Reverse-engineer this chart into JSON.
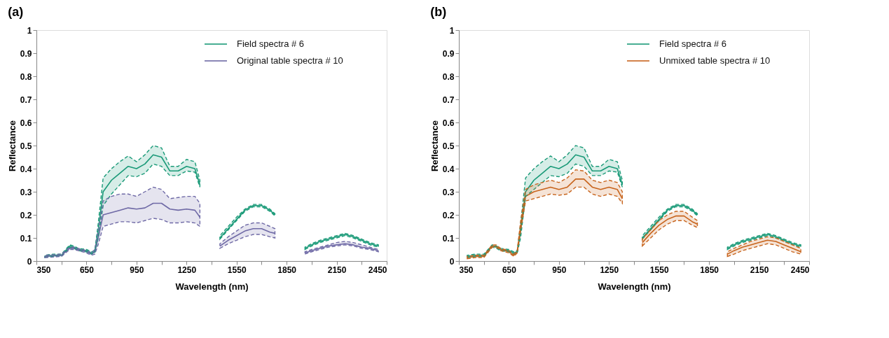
{
  "chart_data": [
    {
      "type": "line",
      "title": "(a)",
      "xlabel": "Wavelength (nm)",
      "ylabel": "Reflectance",
      "legend": "top right",
      "grid": false,
      "line_style": "solid",
      "marker": "none",
      "x": [
        400,
        450,
        500,
        550,
        575,
        600,
        650,
        680,
        700,
        720,
        750,
        800,
        850,
        900,
        950,
        1000,
        1050,
        1100,
        1150,
        1200,
        1250,
        1300,
        1330,
        1400,
        1450,
        1500,
        1550,
        1600,
        1650,
        1700,
        1750,
        1780,
        1900,
        1960,
        2000,
        2050,
        2100,
        2150,
        2200,
        2250,
        2300,
        2350,
        2400
      ],
      "xlim": [
        350,
        2450
      ],
      "xticks": [
        350,
        {
          "value": 500,
          "label": null
        },
        650,
        {
          "value": 800,
          "label": null
        },
        950,
        {
          "value": 1100,
          "label": null
        },
        1250,
        {
          "value": 1400,
          "label": null
        },
        1550,
        {
          "value": 1700,
          "label": null
        },
        1850,
        {
          "value": 2000,
          "label": null
        },
        2150,
        {
          "value": 2300,
          "label": null
        },
        2450
      ],
      "ylim": [
        0,
        1
      ],
      "yticks": [
        0,
        0.1,
        0.2,
        0.3,
        0.4,
        0.5,
        0.6,
        0.7,
        0.8,
        0.9,
        1
      ],
      "series": [
        {
          "name": "Field spectra # 6",
          "color": "#1a9a78",
          "values": [
            0.02,
            0.025,
            0.025,
            0.065,
            0.06,
            0.05,
            0.045,
            0.035,
            0.04,
            0.13,
            0.3,
            0.35,
            0.38,
            0.41,
            0.4,
            0.42,
            0.46,
            0.45,
            0.39,
            0.39,
            0.41,
            0.4,
            0.33,
            null,
            0.1,
            0.14,
            0.18,
            0.22,
            0.24,
            0.24,
            0.22,
            0.2,
            null,
            0.055,
            0.07,
            0.085,
            0.095,
            0.105,
            0.115,
            0.105,
            0.09,
            0.075,
            0.065
          ],
          "lower": [
            0.015,
            0.02,
            0.02,
            0.06,
            0.055,
            0.045,
            0.04,
            0.03,
            0.035,
            0.1,
            0.24,
            0.29,
            0.33,
            0.37,
            0.365,
            0.38,
            0.42,
            0.41,
            0.37,
            0.37,
            0.39,
            0.385,
            0.32,
            null,
            0.095,
            0.135,
            0.175,
            0.215,
            0.235,
            0.235,
            0.215,
            0.195,
            null,
            0.05,
            0.065,
            0.08,
            0.09,
            0.1,
            0.11,
            0.1,
            0.085,
            0.07,
            0.06
          ],
          "upper": [
            0.025,
            0.03,
            0.03,
            0.07,
            0.065,
            0.055,
            0.05,
            0.04,
            0.045,
            0.16,
            0.36,
            0.4,
            0.43,
            0.455,
            0.43,
            0.46,
            0.5,
            0.49,
            0.41,
            0.41,
            0.44,
            0.43,
            0.35,
            null,
            0.11,
            0.15,
            0.19,
            0.225,
            0.245,
            0.245,
            0.225,
            0.205,
            null,
            0.06,
            0.075,
            0.09,
            0.1,
            0.11,
            0.12,
            0.11,
            0.095,
            0.08,
            0.07
          ]
        },
        {
          "name": "Original table spectra # 10",
          "color": "#6f6aa6",
          "values": [
            0.02,
            0.022,
            0.025,
            0.055,
            0.055,
            0.05,
            0.04,
            0.03,
            0.04,
            0.1,
            0.2,
            0.21,
            0.22,
            0.23,
            0.225,
            0.23,
            0.25,
            0.25,
            0.225,
            0.22,
            0.225,
            0.22,
            0.19,
            null,
            0.065,
            0.09,
            0.11,
            0.13,
            0.14,
            0.14,
            0.125,
            0.12,
            null,
            0.035,
            0.045,
            0.055,
            0.065,
            0.07,
            0.075,
            0.07,
            0.06,
            0.055,
            0.045
          ],
          "lower": [
            0.015,
            0.017,
            0.02,
            0.05,
            0.05,
            0.045,
            0.035,
            0.025,
            0.03,
            0.07,
            0.15,
            0.16,
            0.17,
            0.17,
            0.165,
            0.175,
            0.185,
            0.18,
            0.165,
            0.165,
            0.17,
            0.165,
            0.15,
            null,
            0.055,
            0.075,
            0.09,
            0.105,
            0.115,
            0.115,
            0.105,
            0.1,
            null,
            0.03,
            0.04,
            0.05,
            0.06,
            0.065,
            0.07,
            0.065,
            0.055,
            0.05,
            0.04
          ],
          "upper": [
            0.025,
            0.027,
            0.03,
            0.06,
            0.06,
            0.055,
            0.045,
            0.035,
            0.05,
            0.13,
            0.26,
            0.28,
            0.29,
            0.29,
            0.28,
            0.3,
            0.32,
            0.31,
            0.27,
            0.275,
            0.28,
            0.28,
            0.25,
            null,
            0.075,
            0.105,
            0.13,
            0.155,
            0.165,
            0.165,
            0.15,
            0.14,
            null,
            0.04,
            0.05,
            0.06,
            0.07,
            0.08,
            0.085,
            0.08,
            0.07,
            0.06,
            0.05
          ]
        }
      ]
    },
    {
      "type": "line",
      "title": "(b)",
      "xlabel": "Wavelength (nm)",
      "ylabel": "Reflectance",
      "legend": "top right",
      "grid": false,
      "line_style": "solid",
      "marker": "none",
      "x": [
        400,
        450,
        500,
        550,
        575,
        600,
        650,
        680,
        700,
        720,
        750,
        800,
        850,
        900,
        950,
        1000,
        1050,
        1100,
        1150,
        1200,
        1250,
        1300,
        1330,
        1400,
        1450,
        1500,
        1550,
        1600,
        1650,
        1700,
        1750,
        1780,
        1900,
        1960,
        2000,
        2050,
        2100,
        2150,
        2200,
        2250,
        2300,
        2350,
        2400
      ],
      "xlim": [
        350,
        2450
      ],
      "xticks": [
        350,
        {
          "value": 500,
          "label": null
        },
        650,
        {
          "value": 800,
          "label": null
        },
        950,
        {
          "value": 1100,
          "label": null
        },
        1250,
        {
          "value": 1400,
          "label": null
        },
        1550,
        {
          "value": 1700,
          "label": null
        },
        1850,
        {
          "value": 2000,
          "label": null
        },
        2150,
        {
          "value": 2300,
          "label": null
        },
        2450
      ],
      "ylim": [
        0,
        1
      ],
      "yticks": [
        0,
        0.1,
        0.2,
        0.3,
        0.4,
        0.5,
        0.6,
        0.7,
        0.8,
        0.9,
        1
      ],
      "series": [
        {
          "name": "Field spectra # 6",
          "color": "#1a9a78",
          "values": [
            0.02,
            0.025,
            0.025,
            0.065,
            0.06,
            0.05,
            0.045,
            0.035,
            0.04,
            0.13,
            0.3,
            0.35,
            0.38,
            0.41,
            0.4,
            0.42,
            0.46,
            0.45,
            0.39,
            0.39,
            0.41,
            0.4,
            0.33,
            null,
            0.1,
            0.14,
            0.18,
            0.22,
            0.24,
            0.24,
            0.22,
            0.2,
            null,
            0.055,
            0.07,
            0.085,
            0.095,
            0.105,
            0.115,
            0.105,
            0.09,
            0.075,
            0.065
          ],
          "lower": [
            0.015,
            0.02,
            0.02,
            0.06,
            0.055,
            0.045,
            0.04,
            0.03,
            0.035,
            0.1,
            0.28,
            0.31,
            0.34,
            0.37,
            0.365,
            0.38,
            0.42,
            0.41,
            0.37,
            0.37,
            0.39,
            0.385,
            0.32,
            null,
            0.095,
            0.135,
            0.175,
            0.215,
            0.235,
            0.235,
            0.215,
            0.195,
            null,
            0.05,
            0.065,
            0.08,
            0.09,
            0.1,
            0.11,
            0.1,
            0.085,
            0.07,
            0.06
          ],
          "upper": [
            0.025,
            0.03,
            0.03,
            0.07,
            0.065,
            0.055,
            0.05,
            0.04,
            0.045,
            0.16,
            0.36,
            0.4,
            0.43,
            0.455,
            0.43,
            0.46,
            0.5,
            0.49,
            0.41,
            0.41,
            0.44,
            0.43,
            0.35,
            null,
            0.11,
            0.15,
            0.19,
            0.225,
            0.245,
            0.245,
            0.225,
            0.205,
            null,
            0.06,
            0.075,
            0.09,
            0.1,
            0.11,
            0.12,
            0.11,
            0.095,
            0.08,
            0.07
          ]
        },
        {
          "name": "Unmixed table spectra # 10",
          "color": "#c8651e",
          "values": [
            0.015,
            0.02,
            0.02,
            0.065,
            0.065,
            0.05,
            0.04,
            0.025,
            0.04,
            0.15,
            0.28,
            0.3,
            0.31,
            0.32,
            0.31,
            0.32,
            0.355,
            0.355,
            0.32,
            0.31,
            0.32,
            0.31,
            0.27,
            null,
            0.08,
            0.12,
            0.155,
            0.18,
            0.195,
            0.195,
            0.17,
            0.16,
            null,
            0.03,
            0.045,
            0.06,
            0.07,
            0.08,
            0.09,
            0.085,
            0.07,
            0.055,
            0.04
          ],
          "lower": [
            0.01,
            0.015,
            0.015,
            0.06,
            0.06,
            0.045,
            0.035,
            0.02,
            0.035,
            0.13,
            0.26,
            0.27,
            0.28,
            0.29,
            0.285,
            0.29,
            0.32,
            0.32,
            0.29,
            0.28,
            0.29,
            0.28,
            0.25,
            null,
            0.065,
            0.1,
            0.135,
            0.16,
            0.175,
            0.175,
            0.155,
            0.145,
            null,
            0.02,
            0.03,
            0.045,
            0.055,
            0.065,
            0.075,
            0.07,
            0.055,
            0.04,
            0.03
          ],
          "upper": [
            0.02,
            0.025,
            0.025,
            0.07,
            0.07,
            0.055,
            0.045,
            0.03,
            0.045,
            0.17,
            0.31,
            0.33,
            0.34,
            0.35,
            0.34,
            0.36,
            0.395,
            0.39,
            0.35,
            0.34,
            0.35,
            0.34,
            0.3,
            null,
            0.095,
            0.135,
            0.175,
            0.2,
            0.215,
            0.215,
            0.19,
            0.175,
            null,
            0.04,
            0.055,
            0.07,
            0.085,
            0.095,
            0.105,
            0.1,
            0.085,
            0.07,
            0.055
          ]
        }
      ]
    }
  ]
}
